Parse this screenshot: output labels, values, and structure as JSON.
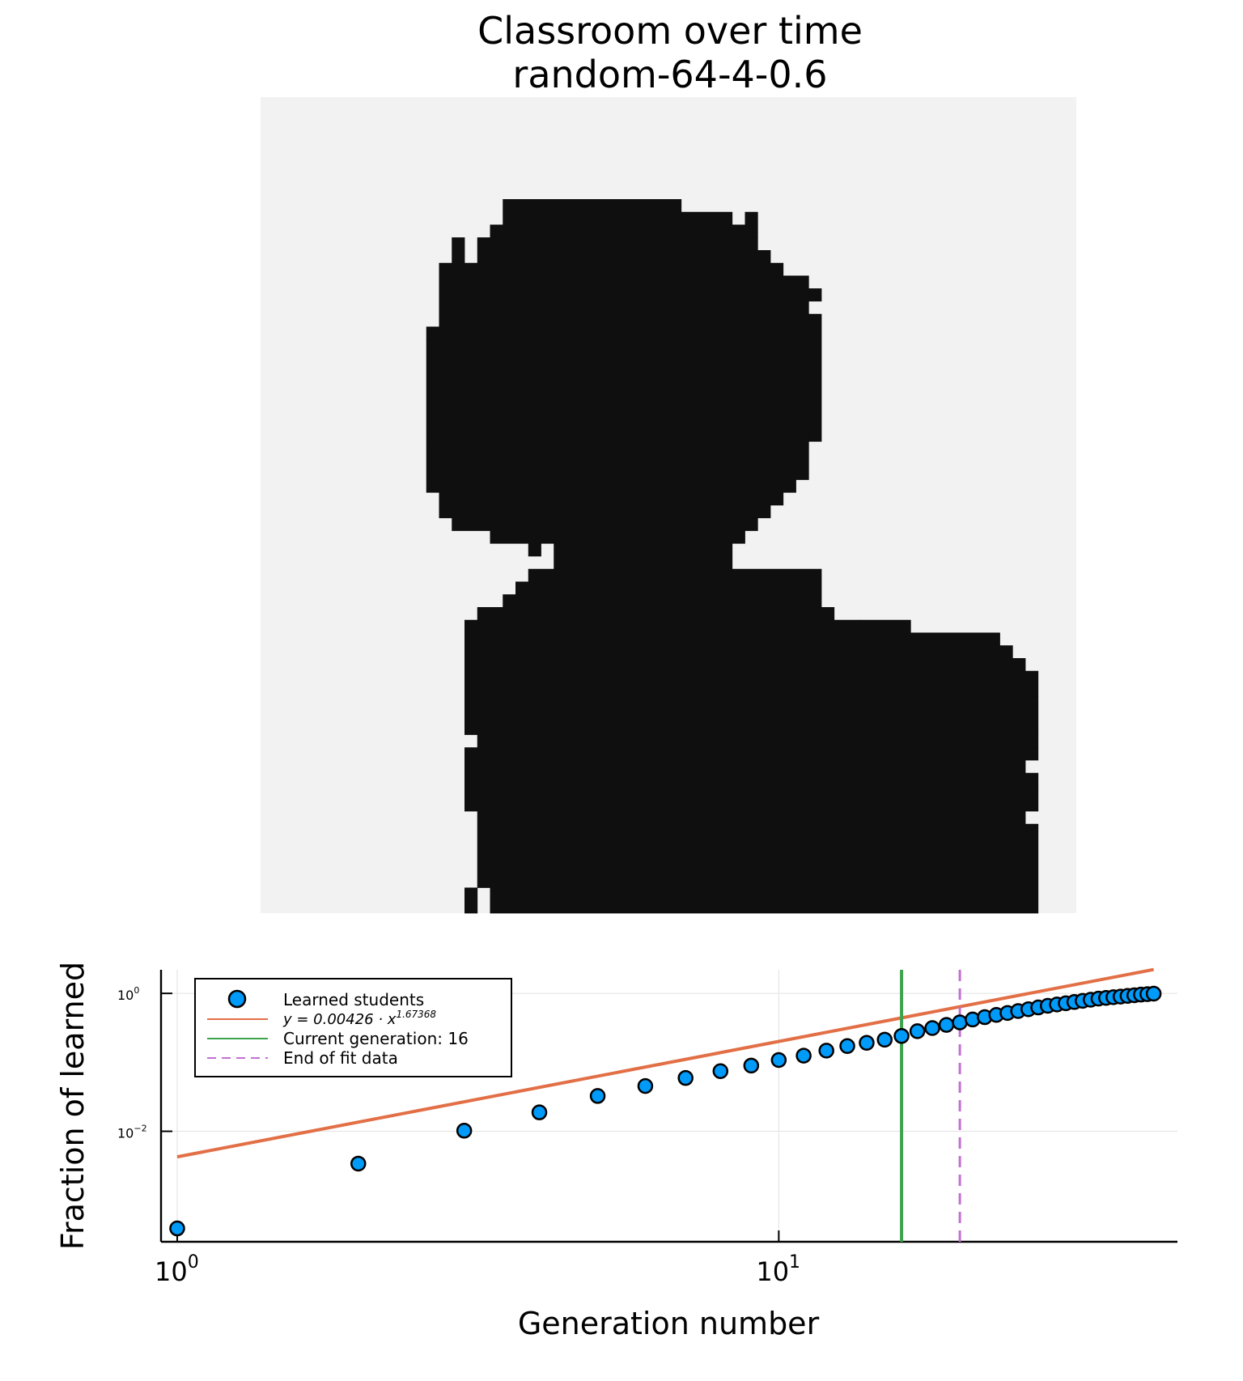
{
  "figure": {
    "title_line1": "Classroom over time",
    "title_line2": "random-64-4-0.6"
  },
  "colors": {
    "background": "#ffffff",
    "grid_background": "#f2f2f2",
    "learned_cell": "#0f0f0f",
    "points": "#009af9",
    "fit_line": "#e26f46",
    "current_generation_line": "#3da44d",
    "end_of_fit_line": "#c271d2"
  },
  "grid": {
    "rows": 64,
    "cols": 64,
    "learned_rows": [
      [
        0,
        0,
        []
      ],
      [
        8,
        8,
        [
          [
            19,
            33
          ]
        ]
      ],
      [
        9,
        9,
        [
          [
            19,
            37
          ],
          [
            38,
            39
          ]
        ]
      ],
      [
        10,
        10,
        [
          [
            18,
            39
          ]
        ]
      ],
      [
        11,
        11,
        [
          [
            15,
            16
          ],
          [
            17,
            39
          ]
        ]
      ],
      [
        12,
        12,
        [
          [
            15,
            16
          ],
          [
            17,
            40
          ]
        ]
      ],
      [
        13,
        13,
        [
          [
            14,
            41
          ]
        ]
      ],
      [
        14,
        14,
        [
          [
            14,
            43
          ]
        ]
      ],
      [
        15,
        15,
        [
          [
            14,
            43
          ],
          [
            43,
            44
          ]
        ]
      ],
      [
        16,
        16,
        [
          [
            14,
            43
          ]
        ]
      ],
      [
        17,
        17,
        [
          [
            14,
            43
          ],
          [
            43,
            44
          ]
        ]
      ],
      [
        18,
        18,
        [
          [
            13,
            44
          ]
        ]
      ],
      [
        19,
        25,
        [
          [
            13,
            44
          ]
        ]
      ],
      [
        26,
        26,
        [
          [
            13,
            43
          ],
          [
            43,
            44
          ]
        ]
      ],
      [
        27,
        29,
        [
          [
            13,
            43
          ]
        ]
      ],
      [
        30,
        30,
        [
          [
            13,
            42
          ]
        ]
      ],
      [
        31,
        31,
        [
          [
            14,
            41
          ]
        ]
      ],
      [
        32,
        32,
        [
          [
            14,
            40
          ]
        ]
      ],
      [
        33,
        33,
        [
          [
            15,
            39
          ]
        ]
      ],
      [
        34,
        34,
        [
          [
            18,
            38
          ]
        ]
      ],
      [
        35,
        35,
        [
          [
            21,
            22
          ],
          [
            23,
            37
          ]
        ]
      ],
      [
        36,
        36,
        [
          [
            23,
            37
          ]
        ]
      ],
      [
        37,
        37,
        [
          [
            21,
            44
          ]
        ]
      ],
      [
        38,
        38,
        [
          [
            20,
            44
          ]
        ]
      ],
      [
        39,
        39,
        [
          [
            19,
            44
          ]
        ]
      ],
      [
        40,
        40,
        [
          [
            17,
            45
          ]
        ]
      ],
      [
        41,
        41,
        [
          [
            16,
            47
          ],
          [
            47,
            51
          ]
        ]
      ],
      [
        42,
        42,
        [
          [
            16,
            58
          ]
        ]
      ],
      [
        43,
        43,
        [
          [
            16,
            59
          ]
        ]
      ],
      [
        44,
        44,
        [
          [
            16,
            60
          ]
        ]
      ],
      [
        45,
        46,
        [
          [
            16,
            61
          ]
        ]
      ],
      [
        47,
        49,
        [
          [
            16,
            61
          ]
        ]
      ],
      [
        50,
        50,
        [
          [
            17,
            61
          ]
        ]
      ],
      [
        51,
        51,
        [
          [
            16,
            61
          ]
        ]
      ],
      [
        52,
        52,
        [
          [
            16,
            60
          ]
        ]
      ],
      [
        53,
        53,
        [
          [
            16,
            61
          ]
        ]
      ],
      [
        54,
        55,
        [
          [
            16,
            61
          ]
        ]
      ],
      [
        56,
        56,
        [
          [
            17,
            60
          ]
        ]
      ],
      [
        57,
        59,
        [
          [
            17,
            61
          ]
        ]
      ],
      [
        60,
        61,
        [
          [
            17,
            61
          ]
        ]
      ],
      [
        62,
        63,
        [
          [
            16,
            17
          ],
          [
            18,
            61
          ]
        ]
      ]
    ]
  },
  "chart_data": {
    "type": "scatter",
    "xlabel": "Generation number",
    "ylabel": "Fraction of learned",
    "xscale": "log10",
    "yscale": "log10",
    "xlim": [
      0.94,
      46
    ],
    "ylim": [
      0.00025,
      2.2
    ],
    "grid": true,
    "legend_position": "top-left",
    "x_ticks": [
      {
        "value": 1,
        "base": "10",
        "exponent": "0"
      },
      {
        "value": 10,
        "base": "10",
        "exponent": "1"
      }
    ],
    "y_ticks": [
      {
        "value": 0.01,
        "base": "10",
        "exponent": "−2"
      },
      {
        "value": 1,
        "base": "10",
        "exponent": "0"
      }
    ],
    "series": [
      {
        "name": "Learned students",
        "kind": "scatter",
        "x": [
          1,
          2,
          3,
          4,
          5,
          6,
          7,
          8,
          9,
          10,
          11,
          12,
          13,
          14,
          15,
          16,
          17,
          18,
          19,
          20,
          21,
          22,
          23,
          24,
          25,
          26,
          27,
          28,
          29,
          30,
          31,
          32,
          33,
          34,
          35,
          36,
          37,
          38,
          39,
          40,
          41,
          42
        ],
        "y": [
          0.00039,
          0.0034,
          0.0102,
          0.0188,
          0.0325,
          0.0453,
          0.0593,
          0.0745,
          0.0898,
          0.108,
          0.125,
          0.148,
          0.172,
          0.192,
          0.213,
          0.241,
          0.283,
          0.314,
          0.349,
          0.379,
          0.418,
          0.452,
          0.488,
          0.52,
          0.555,
          0.59,
          0.625,
          0.66,
          0.69,
          0.72,
          0.75,
          0.78,
          0.81,
          0.84,
          0.86,
          0.88,
          0.9,
          0.92,
          0.94,
          0.96,
          0.975,
          0.99
        ]
      },
      {
        "name": "y = 0.00426 · x",
        "name_superscript": "1.67368",
        "kind": "line",
        "coefficient": 0.00426,
        "exponent": 1.67368,
        "x_range": [
          1,
          42
        ]
      },
      {
        "name": "Current generation: 16",
        "kind": "vline",
        "x": 16
      },
      {
        "name": "End of fit data",
        "kind": "vline-dashed",
        "x": 20
      }
    ]
  }
}
